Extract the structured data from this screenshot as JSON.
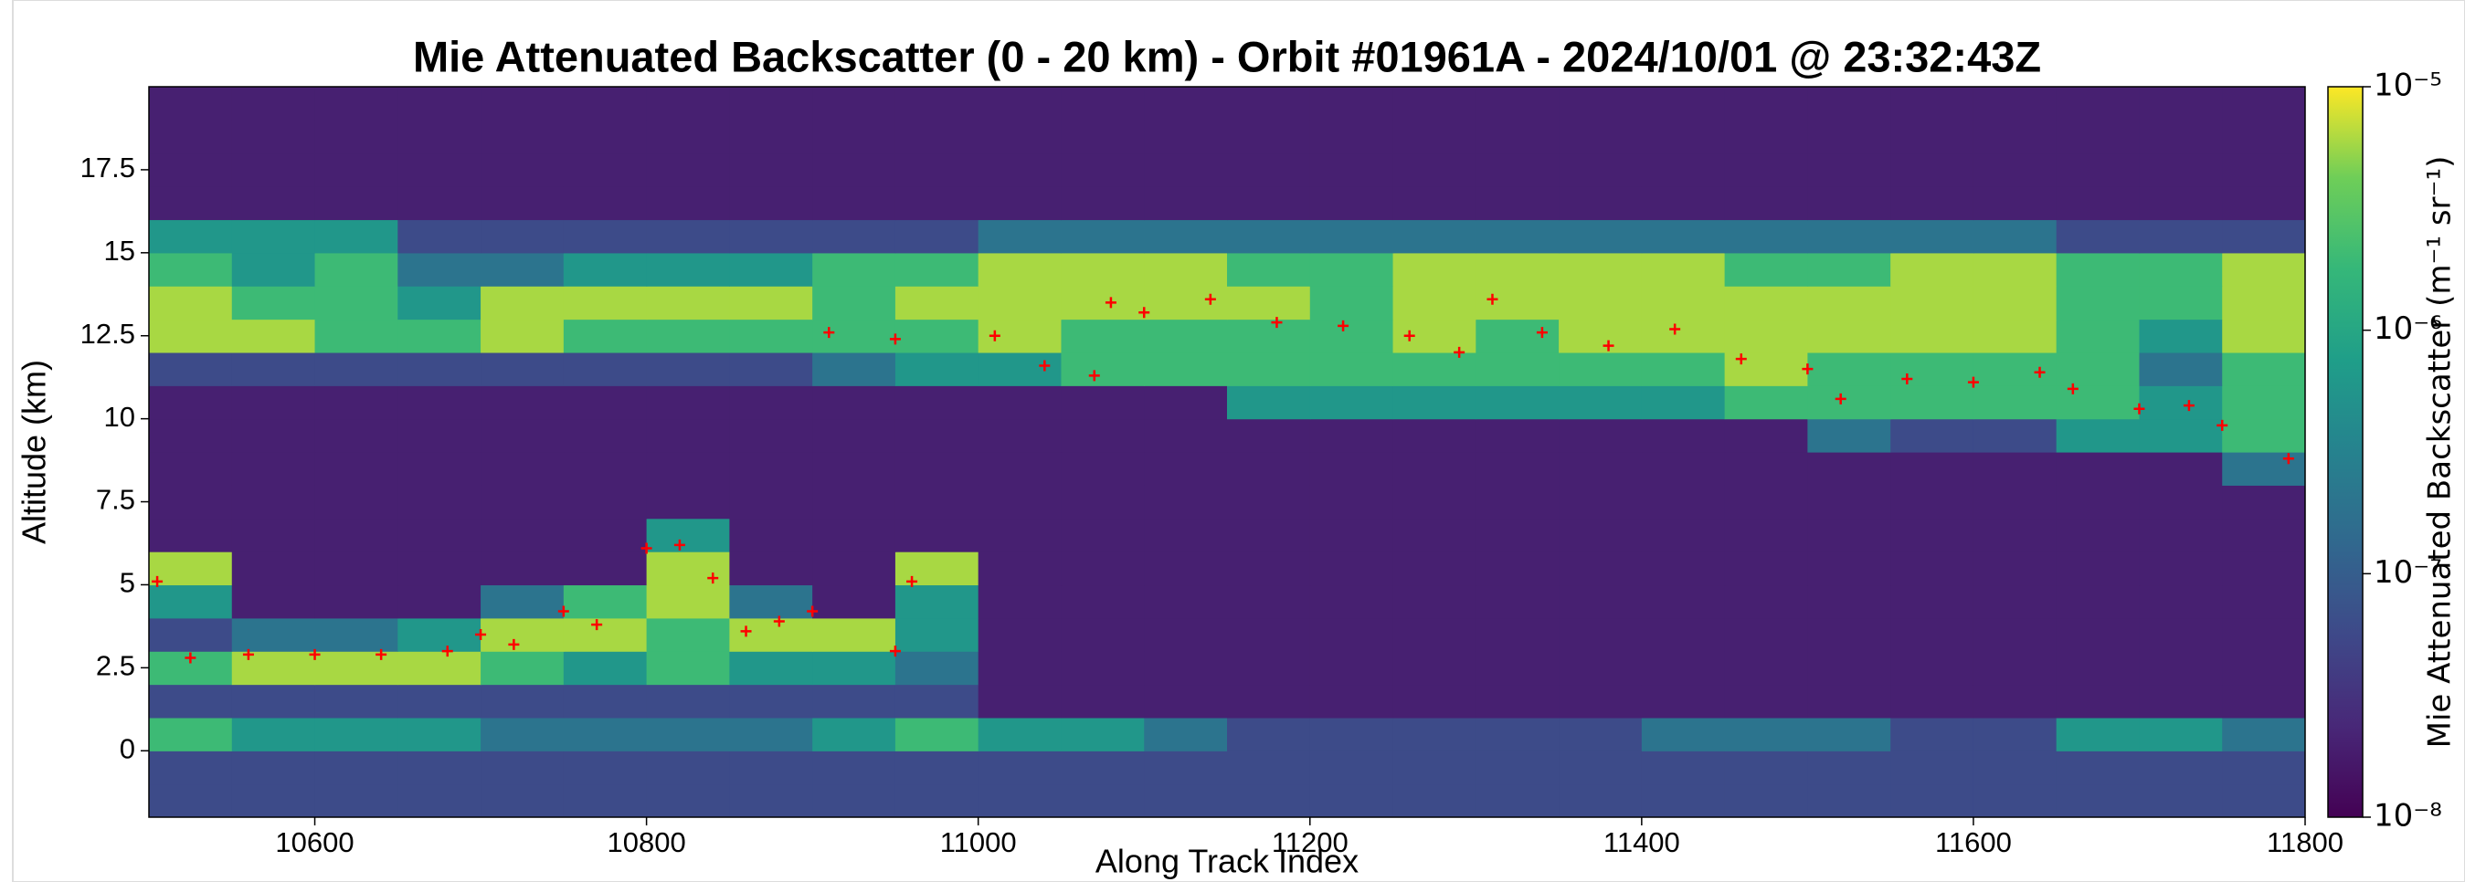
{
  "chart_data": {
    "type": "heatmap",
    "title": "Mie Attenuated Backscatter (0 - 20 km) - Orbit #01961A - 2024/10/01 @ 23:32:43Z",
    "xlabel": "Along Track Index",
    "ylabel": "Altitude (km)",
    "xlim": [
      10500,
      11800
    ],
    "ylim": [
      -2,
      20
    ],
    "xticks": [
      10600,
      10800,
      11000,
      11200,
      11400,
      11600,
      11800
    ],
    "yticks": [
      0,
      2.5,
      5,
      7.5,
      10,
      12.5,
      15,
      17.5
    ],
    "x_bins": [
      10500,
      10550,
      10600,
      10650,
      10700,
      10750,
      10800,
      10850,
      10900,
      10950,
      11000,
      11050,
      11100,
      11150,
      11200,
      11250,
      11300,
      11350,
      11400,
      11450,
      11500,
      11550,
      11600,
      11650,
      11700,
      11750,
      11800
    ],
    "y_bins": [
      -2,
      -1,
      0,
      1,
      2,
      3,
      4,
      5,
      6,
      7,
      8,
      9,
      10,
      11,
      12,
      13,
      14,
      15,
      16,
      17,
      18,
      19,
      20
    ],
    "colormap": "viridis",
    "z": [
      [
        6e-08,
        6e-08,
        6e-08,
        6e-08,
        6e-08,
        6e-08,
        6e-08,
        6e-08,
        6e-08,
        6e-08,
        6e-08,
        6e-08,
        6e-08,
        6e-08,
        6e-08,
        6e-08,
        6e-08,
        6e-08,
        6e-08,
        6e-08,
        6e-08,
        6e-08,
        6e-08,
        6e-08,
        6e-08,
        6e-08
      ],
      [
        6e-08,
        6e-08,
        6e-08,
        6e-08,
        6e-08,
        6e-08,
        6e-08,
        6e-08,
        6e-08,
        6e-08,
        6e-08,
        6e-08,
        6e-08,
        6e-08,
        6e-08,
        6e-08,
        6e-08,
        6e-08,
        6e-08,
        6e-08,
        6e-08,
        6e-08,
        6e-08,
        6e-08,
        6e-08,
        6e-08
      ],
      [
        2e-06,
        6e-07,
        6e-07,
        6e-07,
        2e-07,
        2e-07,
        2e-07,
        2e-07,
        6e-07,
        2e-06,
        6e-07,
        6e-07,
        2e-07,
        6e-08,
        6e-08,
        6e-08,
        6e-08,
        6e-08,
        2e-07,
        2e-07,
        2e-07,
        6e-08,
        6e-08,
        6e-07,
        6e-07,
        2e-07
      ],
      [
        6e-08,
        6e-08,
        6e-08,
        6e-08,
        6e-08,
        6e-08,
        6e-08,
        6e-08,
        6e-08,
        6e-08,
        2e-08,
        2e-08,
        2e-08,
        2e-08,
        2e-08,
        2e-08,
        2e-08,
        2e-08,
        2e-08,
        2e-08,
        2e-08,
        2e-08,
        2e-08,
        2e-08,
        2e-08,
        2e-08
      ],
      [
        2e-06,
        6e-06,
        6e-06,
        6e-06,
        2e-06,
        6e-07,
        2e-06,
        6e-07,
        6e-07,
        2e-07,
        2e-08,
        2e-08,
        2e-08,
        2e-08,
        2e-08,
        2e-08,
        2e-08,
        2e-08,
        2e-08,
        2e-08,
        2e-08,
        2e-08,
        2e-08,
        2e-08,
        2e-08,
        2e-08
      ],
      [
        6e-08,
        2e-07,
        2e-07,
        6e-07,
        6e-06,
        6e-06,
        2e-06,
        6e-06,
        6e-06,
        6e-07,
        2e-08,
        2e-08,
        2e-08,
        2e-08,
        2e-08,
        2e-08,
        2e-08,
        2e-08,
        2e-08,
        2e-08,
        2e-08,
        2e-08,
        2e-08,
        2e-08,
        2e-08,
        2e-08
      ],
      [
        6e-07,
        2e-08,
        2e-08,
        2e-08,
        2e-07,
        2e-06,
        6e-06,
        2e-07,
        2e-08,
        6e-07,
        2e-08,
        2e-08,
        2e-08,
        2e-08,
        2e-08,
        2e-08,
        2e-08,
        2e-08,
        2e-08,
        2e-08,
        2e-08,
        2e-08,
        2e-08,
        2e-08,
        2e-08,
        2e-08
      ],
      [
        6e-06,
        2e-08,
        2e-08,
        2e-08,
        2e-08,
        2e-08,
        6e-06,
        2e-08,
        2e-08,
        6e-06,
        2e-08,
        2e-08,
        2e-08,
        2e-08,
        2e-08,
        2e-08,
        2e-08,
        2e-08,
        2e-08,
        2e-08,
        2e-08,
        2e-08,
        2e-08,
        2e-08,
        2e-08,
        2e-08
      ],
      [
        2e-08,
        2e-08,
        2e-08,
        2e-08,
        2e-08,
        2e-08,
        6e-07,
        2e-08,
        2e-08,
        2e-08,
        2e-08,
        2e-08,
        2e-08,
        2e-08,
        2e-08,
        2e-08,
        2e-08,
        2e-08,
        2e-08,
        2e-08,
        2e-08,
        2e-08,
        2e-08,
        2e-08,
        2e-08,
        2e-08
      ],
      [
        2e-08,
        2e-08,
        2e-08,
        2e-08,
        2e-08,
        2e-08,
        2e-08,
        2e-08,
        2e-08,
        2e-08,
        2e-08,
        2e-08,
        2e-08,
        2e-08,
        2e-08,
        2e-08,
        2e-08,
        2e-08,
        2e-08,
        2e-08,
        2e-08,
        2e-08,
        2e-08,
        2e-08,
        2e-08,
        2e-08
      ],
      [
        2e-08,
        2e-08,
        2e-08,
        2e-08,
        2e-08,
        2e-08,
        2e-08,
        2e-08,
        2e-08,
        2e-08,
        2e-08,
        2e-08,
        2e-08,
        2e-08,
        2e-08,
        2e-08,
        2e-08,
        2e-08,
        2e-08,
        2e-08,
        2e-08,
        2e-08,
        2e-08,
        2e-08,
        2e-08,
        2e-07
      ],
      [
        2e-08,
        2e-08,
        2e-08,
        2e-08,
        2e-08,
        2e-08,
        2e-08,
        2e-08,
        2e-08,
        2e-08,
        2e-08,
        2e-08,
        2e-08,
        2e-08,
        2e-08,
        2e-08,
        2e-08,
        2e-08,
        2e-08,
        2e-08,
        2e-07,
        6e-08,
        6e-08,
        6e-07,
        6e-07,
        2e-06
      ],
      [
        2e-08,
        2e-08,
        2e-08,
        2e-08,
        2e-08,
        2e-08,
        2e-08,
        2e-08,
        2e-08,
        2e-08,
        2e-08,
        2e-08,
        2e-08,
        6e-07,
        6e-07,
        6e-07,
        6e-07,
        6e-07,
        6e-07,
        2e-06,
        2e-06,
        2e-06,
        2e-06,
        2e-06,
        6e-07,
        2e-06
      ],
      [
        6e-08,
        6e-08,
        6e-08,
        6e-08,
        6e-08,
        6e-08,
        6e-08,
        6e-08,
        2e-07,
        6e-07,
        6e-07,
        2e-06,
        2e-06,
        2e-06,
        2e-06,
        2e-06,
        2e-06,
        2e-06,
        2e-06,
        6e-06,
        2e-06,
        2e-06,
        2e-06,
        2e-06,
        2e-07,
        2e-06
      ],
      [
        6e-06,
        6e-06,
        2e-06,
        2e-06,
        6e-06,
        2e-06,
        2e-06,
        2e-06,
        2e-06,
        2e-06,
        6e-06,
        2e-06,
        2e-06,
        2e-06,
        2e-06,
        6e-06,
        2e-06,
        6e-06,
        6e-06,
        6e-06,
        6e-06,
        6e-06,
        6e-06,
        2e-06,
        6e-07,
        6e-06
      ],
      [
        6e-06,
        2e-06,
        2e-06,
        6e-07,
        6e-06,
        6e-06,
        6e-06,
        6e-06,
        2e-06,
        6e-06,
        6e-06,
        6e-06,
        6e-06,
        6e-06,
        2e-06,
        6e-06,
        6e-06,
        6e-06,
        6e-06,
        6e-06,
        6e-06,
        6e-06,
        6e-06,
        2e-06,
        2e-06,
        6e-06
      ],
      [
        2e-06,
        6e-07,
        2e-06,
        2e-07,
        2e-07,
        6e-07,
        6e-07,
        6e-07,
        2e-06,
        2e-06,
        6e-06,
        6e-06,
        6e-06,
        2e-06,
        2e-06,
        6e-06,
        6e-06,
        6e-06,
        6e-06,
        2e-06,
        2e-06,
        6e-06,
        6e-06,
        2e-06,
        2e-06,
        6e-06
      ],
      [
        6e-07,
        6e-07,
        6e-07,
        6e-08,
        6e-08,
        6e-08,
        6e-08,
        6e-08,
        6e-08,
        6e-08,
        2e-07,
        2e-07,
        2e-07,
        2e-07,
        2e-07,
        2e-07,
        2e-07,
        2e-07,
        2e-07,
        2e-07,
        2e-07,
        2e-07,
        2e-07,
        6e-08,
        6e-08,
        6e-08
      ],
      [
        2e-08,
        2e-08,
        2e-08,
        2e-08,
        2e-08,
        2e-08,
        2e-08,
        2e-08,
        2e-08,
        2e-08,
        2e-08,
        2e-08,
        2e-08,
        2e-08,
        2e-08,
        2e-08,
        2e-08,
        2e-08,
        2e-08,
        2e-08,
        2e-08,
        2e-08,
        2e-08,
        2e-08,
        2e-08,
        2e-08
      ],
      [
        2e-08,
        2e-08,
        2e-08,
        2e-08,
        2e-08,
        2e-08,
        2e-08,
        2e-08,
        2e-08,
        2e-08,
        2e-08,
        2e-08,
        2e-08,
        2e-08,
        2e-08,
        2e-08,
        2e-08,
        2e-08,
        2e-08,
        2e-08,
        2e-08,
        2e-08,
        2e-08,
        2e-08,
        2e-08,
        2e-08
      ],
      [
        2e-08,
        2e-08,
        2e-08,
        2e-08,
        2e-08,
        2e-08,
        2e-08,
        2e-08,
        2e-08,
        2e-08,
        2e-08,
        2e-08,
        2e-08,
        2e-08,
        2e-08,
        2e-08,
        2e-08,
        2e-08,
        2e-08,
        2e-08,
        2e-08,
        2e-08,
        2e-08,
        2e-08,
        2e-08,
        2e-08
      ],
      [
        2e-08,
        2e-08,
        2e-08,
        2e-08,
        2e-08,
        2e-08,
        2e-08,
        2e-08,
        2e-08,
        2e-08,
        2e-08,
        2e-08,
        2e-08,
        2e-08,
        2e-08,
        2e-08,
        2e-08,
        2e-08,
        2e-08,
        2e-08,
        2e-08,
        2e-08,
        2e-08,
        2e-08,
        2e-08,
        2e-08
      ]
    ],
    "colorbar": {
      "label": "Mie Attenuated Backscatter (m⁻¹ sr⁻¹)",
      "scale": "log",
      "lim": [
        1e-08,
        1e-05
      ],
      "ticks": [
        {
          "value": 1e-08,
          "label": "10⁻⁸"
        },
        {
          "value": 1e-07,
          "label": "10⁻⁷"
        },
        {
          "value": 1e-06,
          "label": "10⁻⁶"
        },
        {
          "value": 1e-05,
          "label": "10⁻⁵"
        }
      ]
    },
    "markers": {
      "marker": "+",
      "color": "#ff0000",
      "x": [
        10505,
        10525,
        10560,
        10600,
        10640,
        10680,
        10700,
        10720,
        10750,
        10770,
        10800,
        10820,
        10840,
        10860,
        10880,
        10900,
        10950,
        10960,
        10910,
        10950,
        11010,
        11040,
        11070,
        11080,
        11100,
        11140,
        11180,
        11220,
        11260,
        11290,
        11310,
        11340,
        11380,
        11420,
        11460,
        11500,
        11520,
        11560,
        11600,
        11640,
        11660,
        11700,
        11730,
        11750,
        11790
      ],
      "y": [
        5.1,
        2.8,
        2.9,
        2.9,
        2.9,
        3.0,
        3.5,
        3.2,
        4.2,
        3.8,
        6.1,
        6.2,
        5.2,
        3.6,
        3.9,
        4.2,
        3.0,
        5.1,
        12.6,
        12.4,
        12.5,
        11.6,
        11.3,
        13.5,
        13.2,
        13.6,
        12.9,
        12.8,
        12.5,
        12.0,
        13.6,
        12.6,
        12.2,
        12.7,
        11.8,
        11.5,
        10.6,
        11.2,
        11.1,
        11.4,
        10.9,
        10.3,
        10.4,
        9.8,
        8.8
      ]
    }
  }
}
